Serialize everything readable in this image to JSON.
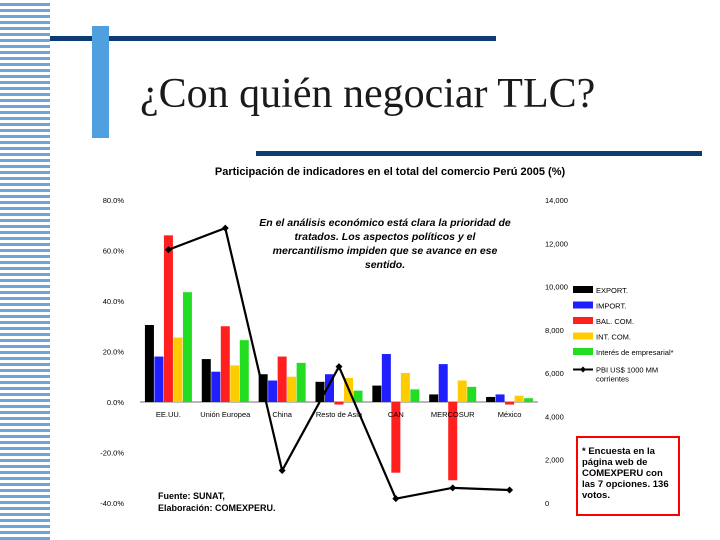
{
  "slide": {
    "title": "¿Con quién negociar TLC?"
  },
  "annotation": {
    "lines": [
      "En el análisis económico está clara la prioridad de",
      "tratados. Los aspectos políticos y el",
      "mercantilismo impiden que se avance en ese",
      "sentido."
    ]
  },
  "source": {
    "line1": "Fuente: SUNAT,",
    "line2": "Elaboración: COMEXPERU."
  },
  "note": {
    "text": "* Encuesta en la página web de COMEXPERU con las 7 opciones. 136 votos."
  },
  "colors": {
    "export": "#000000",
    "import": "#1f1fff",
    "balance": "#ff1f1f",
    "intcom": "#ffcc00",
    "interest": "#22dd22",
    "line": "#000000"
  },
  "chart_data": {
    "type": "bar",
    "title": "Participación de indicadores en el total del comercio Perú 2005 (%)",
    "categories": [
      "EE.UU.",
      "Unión Europea",
      "China",
      "Resto de Asia",
      "CAN",
      "MERCOSUR",
      "México"
    ],
    "y_left": {
      "min": -40,
      "max": 80,
      "step": 20,
      "tick_labels": [
        "-40.0%",
        "-20.0%",
        "0.0%",
        "20.0%",
        "40.0%",
        "60.0%",
        "80.0%"
      ]
    },
    "y_right": {
      "min": 0,
      "max": 14000,
      "step": 2000,
      "tick_labels": [
        "0",
        "2,000",
        "4,000",
        "6,000",
        "8,000",
        "10,000",
        "12,000",
        "14,000"
      ]
    },
    "series": [
      {
        "name": "EXPORT.",
        "color_key": "export",
        "values": [
          30.5,
          17,
          11,
          8,
          6.5,
          3,
          2
        ]
      },
      {
        "name": "IMPORT.",
        "color_key": "import",
        "values": [
          18,
          12,
          8.5,
          11,
          19,
          15,
          3
        ]
      },
      {
        "name": "BAL. COM.",
        "color_key": "balance",
        "values": [
          66,
          30,
          18,
          -1,
          -28,
          -31,
          -1
        ]
      },
      {
        "name": "INT. COM.",
        "color_key": "intcom",
        "values": [
          25.5,
          14.5,
          10,
          9.5,
          11.5,
          8.5,
          2.5
        ]
      },
      {
        "name": "Interés de empresarial*",
        "color_key": "interest",
        "values": [
          43.5,
          24.5,
          15.5,
          4.5,
          5,
          6,
          1.5
        ]
      }
    ],
    "line_series": {
      "name": "PBI US$ 1000 MM corrientes",
      "axis": "right",
      "values": [
        11700,
        12700,
        1500,
        6300,
        200,
        700,
        600
      ]
    },
    "legend_placement": "right"
  }
}
